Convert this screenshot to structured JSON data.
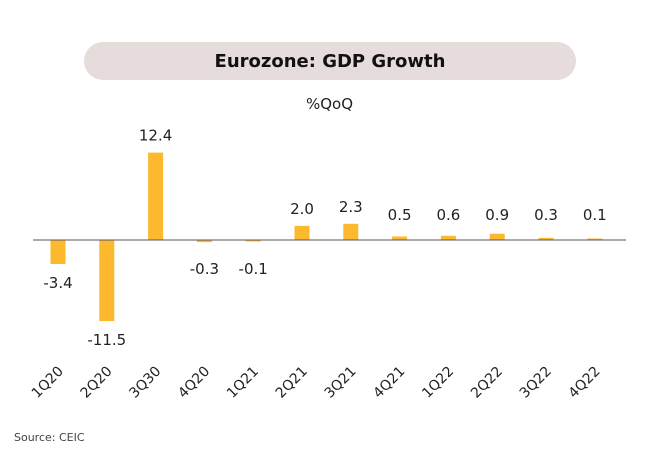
{
  "chart_data": {
    "type": "bar",
    "title": "Eurozone: GDP Growth",
    "unit": "%QoQ",
    "categories": [
      "1Q20",
      "2Q20",
      "3Q30",
      "4Q20",
      "1Q21",
      "2Q21",
      "3Q21",
      "4Q21",
      "1Q22",
      "2Q22",
      "3Q22",
      "4Q22"
    ],
    "values": [
      -3.4,
      -11.5,
      12.4,
      -0.3,
      -0.1,
      2.0,
      2.3,
      0.5,
      0.6,
      0.9,
      0.3,
      0.1
    ],
    "value_labels": [
      "-3.4",
      "-11.5",
      "12.4",
      "-0.3",
      "-0.1",
      "2.0",
      "2.3",
      "0.5",
      "0.6",
      "0.9",
      "0.3",
      "0.1"
    ],
    "bar_color": "#fdb92e",
    "axis_color": "#555555",
    "grid": false,
    "legend": "none"
  },
  "source": "Source: CEIC"
}
